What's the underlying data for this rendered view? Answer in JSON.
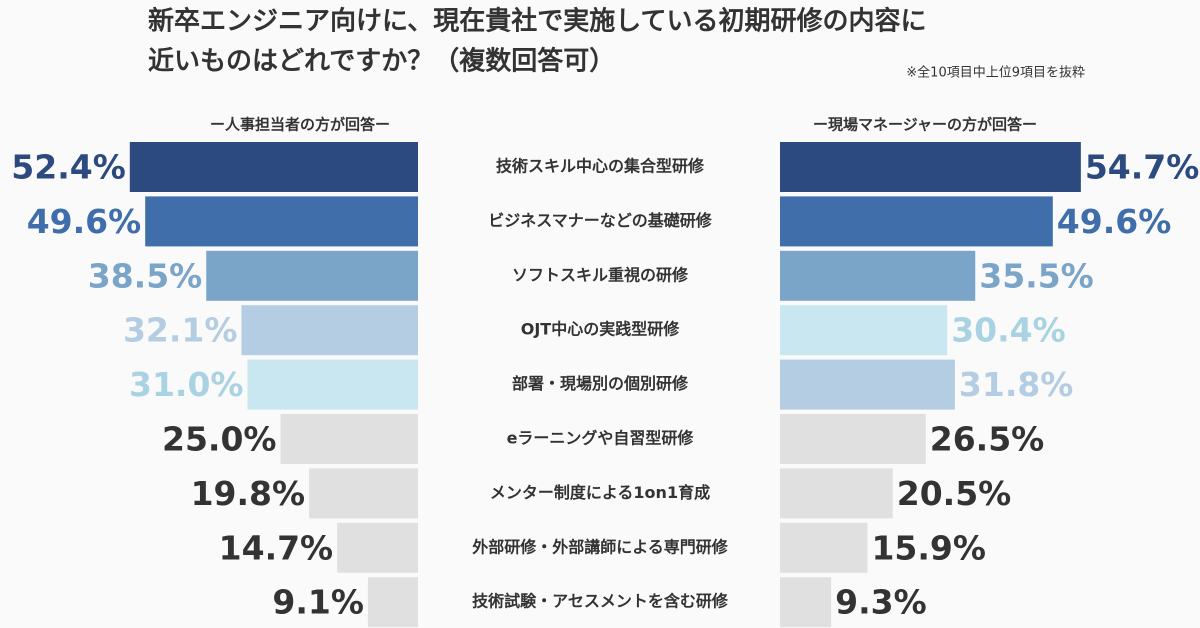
{
  "chart_data": {
    "type": "butterfly-bar",
    "title": [
      "新卒エンジニア向けに、現在貴社で実施している初期研修の内容に",
      "近いものはどれですか？（複数回答可）"
    ],
    "note": "※全10項目中上位9項目を抜粋",
    "categories": [
      "技術スキル中心の集合型研修",
      "ビジネスマナーなどの基礎研修",
      "ソフトスキル重視の研修",
      "OJT中心の実践型研修",
      "部署・現場別の個別研修",
      "eラーニングや自習型研修",
      "メンター制度による1on1育成",
      "外部研修・外部講師による専門研修",
      "技術試験・アセスメントを含む研修"
    ],
    "series": [
      {
        "name": "ー人事担当者の方が回答ー",
        "values": [
          52.4,
          49.6,
          38.5,
          32.1,
          31.0,
          25.0,
          19.8,
          14.7,
          9.1
        ],
        "value_labels": [
          "52.4%",
          "49.6%",
          "38.5%",
          "32.1%",
          "31.0%",
          "25.0%",
          "19.8%",
          "14.7%",
          "9.1%"
        ],
        "colors": [
          "#2c4a80",
          "#3f6eab",
          "#7ba4c9",
          "#b5cde2",
          "#c8e7f1",
          "#e0e0e0",
          "#e0e0e0",
          "#e0e0e0",
          "#e0e0e0"
        ],
        "label_colors": [
          "#2c4a80",
          "#3f6eab",
          "#7ba4c9",
          "#b5cde2",
          "#a9d3e3",
          "#333333",
          "#333333",
          "#333333",
          "#333333"
        ]
      },
      {
        "name": "ー現場マネージャーの方が回答ー",
        "values": [
          54.7,
          49.6,
          35.5,
          30.4,
          31.8,
          26.5,
          20.5,
          15.9,
          9.3
        ],
        "value_labels": [
          "54.7%",
          "49.6%",
          "35.5%",
          "30.4%",
          "31.8%",
          "26.5%",
          "20.5%",
          "15.9%",
          "9.3%"
        ],
        "colors": [
          "#2c4a80",
          "#3f6eab",
          "#7ba4c9",
          "#c8e7f1",
          "#b5cde2",
          "#e0e0e0",
          "#e0e0e0",
          "#e0e0e0",
          "#e0e0e0"
        ],
        "label_colors": [
          "#2c4a80",
          "#3f6eab",
          "#7ba4c9",
          "#a9d3e3",
          "#b5cde2",
          "#333333",
          "#333333",
          "#333333",
          "#333333"
        ]
      }
    ]
  }
}
